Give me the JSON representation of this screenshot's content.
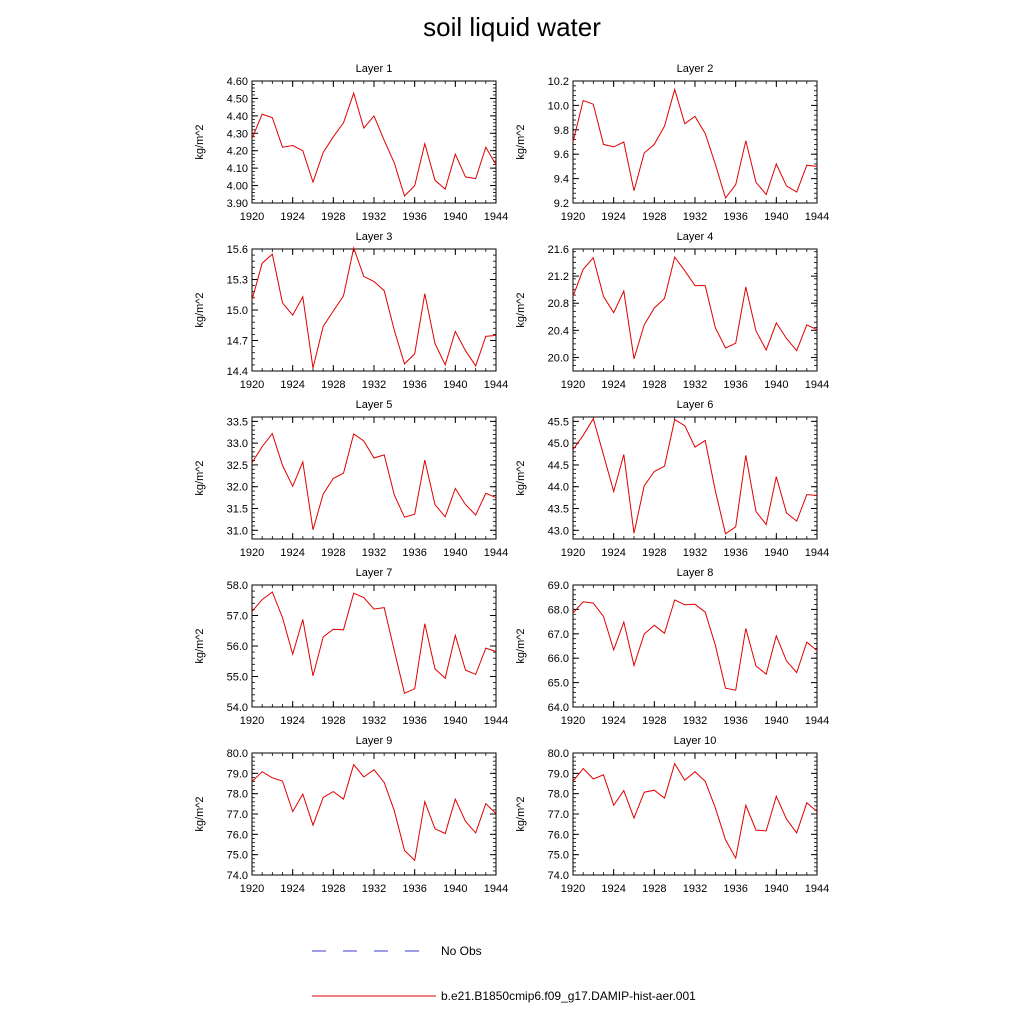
{
  "title": "soil liquid water",
  "legend": {
    "items": [
      {
        "label": "No Obs",
        "color": "#3b3bd6",
        "style": "dashed"
      },
      {
        "label": "b.e21.B1850cmip6.f09_g17.DAMIP-hist-aer.001",
        "color": "#e00000",
        "style": "solid"
      }
    ]
  },
  "colors": {
    "series": "#e00000",
    "obs": "#3b3bd6"
  },
  "chart_data": [
    {
      "type": "line",
      "title": "Layer 1",
      "ylabel": "kg/m^2",
      "xlim": [
        1920,
        1944
      ],
      "ylim": [
        3.9,
        4.6
      ],
      "xticks": [
        "1920",
        "1924",
        "1928",
        "1932",
        "1936",
        "1940",
        "1944"
      ],
      "yticks": [
        "3.90",
        "4.00",
        "4.10",
        "4.20",
        "4.30",
        "4.40",
        "4.50",
        "4.60"
      ],
      "x": [
        1920,
        1921,
        1922,
        1923,
        1924,
        1925,
        1926,
        1927,
        1928,
        1929,
        1930,
        1931,
        1932,
        1933,
        1934,
        1935,
        1936,
        1937,
        1938,
        1939,
        1940,
        1941,
        1942,
        1943,
        1944
      ],
      "series": [
        {
          "name": "b.e21.B1850cmip6.f09_g17.DAMIP-hist-aer.001",
          "values": [
            4.27,
            4.41,
            4.39,
            4.22,
            4.23,
            4.2,
            4.02,
            4.19,
            4.28,
            4.36,
            4.53,
            4.33,
            4.4,
            4.26,
            4.13,
            3.94,
            4.0,
            4.24,
            4.03,
            3.98,
            4.18,
            4.05,
            4.04,
            4.22,
            4.12
          ]
        }
      ]
    },
    {
      "type": "line",
      "title": "Layer 2",
      "ylabel": "kg/m^2",
      "xlim": [
        1920,
        1944
      ],
      "ylim": [
        9.2,
        10.2
      ],
      "xticks": [
        "1920",
        "1924",
        "1928",
        "1932",
        "1936",
        "1940",
        "1944"
      ],
      "yticks": [
        "9.2",
        "9.4",
        "9.6",
        "9.8",
        "10.0",
        "10.2"
      ],
      "x": [
        1920,
        1921,
        1922,
        1923,
        1924,
        1925,
        1926,
        1927,
        1928,
        1929,
        1930,
        1931,
        1932,
        1933,
        1934,
        1935,
        1936,
        1937,
        1938,
        1939,
        1940,
        1941,
        1942,
        1943,
        1944
      ],
      "series": [
        {
          "name": "b.e21.B1850cmip6.f09_g17.DAMIP-hist-aer.001",
          "values": [
            9.7,
            10.04,
            10.01,
            9.68,
            9.66,
            9.7,
            9.3,
            9.61,
            9.68,
            9.83,
            10.13,
            9.85,
            9.91,
            9.77,
            9.52,
            9.24,
            9.35,
            9.71,
            9.37,
            9.27,
            9.52,
            9.34,
            9.29,
            9.51,
            9.5
          ]
        }
      ]
    },
    {
      "type": "line",
      "title": "Layer 3",
      "ylabel": "kg/m^2",
      "xlim": [
        1920,
        1944
      ],
      "ylim": [
        14.4,
        15.6
      ],
      "xticks": [
        "1920",
        "1924",
        "1928",
        "1932",
        "1936",
        "1940",
        "1944"
      ],
      "yticks": [
        "14.4",
        "14.7",
        "15.0",
        "15.3",
        "15.6"
      ],
      "x": [
        1920,
        1921,
        1922,
        1923,
        1924,
        1925,
        1926,
        1927,
        1928,
        1929,
        1930,
        1931,
        1932,
        1933,
        1934,
        1935,
        1936,
        1937,
        1938,
        1939,
        1940,
        1941,
        1942,
        1943,
        1944
      ],
      "series": [
        {
          "name": "b.e21.B1850cmip6.f09_g17.DAMIP-hist-aer.001",
          "values": [
            15.1,
            15.46,
            15.55,
            15.07,
            14.95,
            15.13,
            14.43,
            14.84,
            14.99,
            15.14,
            15.61,
            15.33,
            15.28,
            15.19,
            14.8,
            14.47,
            14.57,
            15.16,
            14.67,
            14.46,
            14.79,
            14.6,
            14.45,
            14.74,
            14.75
          ]
        }
      ]
    },
    {
      "type": "line",
      "title": "Layer 4",
      "ylabel": "kg/m^2",
      "xlim": [
        1920,
        1944
      ],
      "ylim": [
        19.8,
        21.6
      ],
      "xticks": [
        "1920",
        "1924",
        "1928",
        "1932",
        "1936",
        "1940",
        "1944"
      ],
      "yticks": [
        "20.0",
        "20.4",
        "20.8",
        "21.2",
        "21.6"
      ],
      "x": [
        1920,
        1921,
        1922,
        1923,
        1924,
        1925,
        1926,
        1927,
        1928,
        1929,
        1930,
        1931,
        1932,
        1933,
        1934,
        1935,
        1936,
        1937,
        1938,
        1939,
        1940,
        1941,
        1942,
        1943,
        1944
      ],
      "series": [
        {
          "name": "b.e21.B1850cmip6.f09_g17.DAMIP-hist-aer.001",
          "values": [
            20.9,
            21.3,
            21.47,
            20.9,
            20.66,
            20.98,
            19.98,
            20.48,
            20.73,
            20.87,
            21.48,
            21.28,
            21.06,
            21.06,
            20.44,
            20.14,
            20.21,
            21.04,
            20.39,
            20.11,
            20.51,
            20.28,
            20.1,
            20.48,
            20.41
          ]
        }
      ]
    },
    {
      "type": "line",
      "title": "Layer 5",
      "ylabel": "kg/m^2",
      "xlim": [
        1920,
        1944
      ],
      "ylim": [
        30.8,
        33.6
      ],
      "xticks": [
        "1920",
        "1924",
        "1928",
        "1932",
        "1936",
        "1940",
        "1944"
      ],
      "yticks": [
        "31.0",
        "31.5",
        "32.0",
        "32.5",
        "33.0",
        "33.5"
      ],
      "x": [
        1920,
        1921,
        1922,
        1923,
        1924,
        1925,
        1926,
        1927,
        1928,
        1929,
        1930,
        1931,
        1932,
        1933,
        1934,
        1935,
        1936,
        1937,
        1938,
        1939,
        1940,
        1941,
        1942,
        1943,
        1944
      ],
      "series": [
        {
          "name": "b.e21.B1850cmip6.f09_g17.DAMIP-hist-aer.001",
          "values": [
            32.55,
            32.92,
            33.22,
            32.49,
            32.01,
            32.57,
            31.01,
            31.83,
            32.19,
            32.31,
            33.21,
            33.05,
            32.66,
            32.73,
            31.81,
            31.3,
            31.37,
            32.61,
            31.59,
            31.31,
            31.96,
            31.59,
            31.35,
            31.85,
            31.75
          ]
        }
      ]
    },
    {
      "type": "line",
      "title": "Layer 6",
      "ylabel": "kg/m^2",
      "xlim": [
        1920,
        1944
      ],
      "ylim": [
        42.8,
        45.6
      ],
      "xticks": [
        "1920",
        "1924",
        "1928",
        "1932",
        "1936",
        "1940",
        "1944"
      ],
      "yticks": [
        "43.0",
        "43.5",
        "44.0",
        "44.5",
        "45.0",
        "45.5"
      ],
      "x": [
        1920,
        1921,
        1922,
        1923,
        1924,
        1925,
        1926,
        1927,
        1928,
        1929,
        1930,
        1931,
        1932,
        1933,
        1934,
        1935,
        1936,
        1937,
        1938,
        1939,
        1940,
        1941,
        1942,
        1943,
        1944
      ],
      "series": [
        {
          "name": "b.e21.B1850cmip6.f09_g17.DAMIP-hist-aer.001",
          "values": [
            44.85,
            45.18,
            45.56,
            44.73,
            43.89,
            44.74,
            42.93,
            44.02,
            44.35,
            44.47,
            45.54,
            45.4,
            44.91,
            45.06,
            43.91,
            42.92,
            43.08,
            44.72,
            43.43,
            43.13,
            44.23,
            43.4,
            43.21,
            43.82,
            43.8
          ]
        }
      ]
    },
    {
      "type": "line",
      "title": "Layer 7",
      "ylabel": "kg/m^2",
      "xlim": [
        1920,
        1944
      ],
      "ylim": [
        54.0,
        58.0
      ],
      "xticks": [
        "1920",
        "1924",
        "1928",
        "1932",
        "1936",
        "1940",
        "1944"
      ],
      "yticks": [
        "54.0",
        "55.0",
        "56.0",
        "57.0",
        "58.0"
      ],
      "x": [
        1920,
        1921,
        1922,
        1923,
        1924,
        1925,
        1926,
        1927,
        1928,
        1929,
        1930,
        1931,
        1932,
        1933,
        1934,
        1935,
        1936,
        1937,
        1938,
        1939,
        1940,
        1941,
        1942,
        1943,
        1944
      ],
      "series": [
        {
          "name": "b.e21.B1850cmip6.f09_g17.DAMIP-hist-aer.001",
          "values": [
            57.13,
            57.52,
            57.77,
            56.93,
            55.73,
            56.87,
            55.02,
            56.3,
            56.55,
            56.53,
            57.73,
            57.59,
            57.21,
            57.26,
            55.85,
            54.45,
            54.6,
            56.73,
            55.25,
            54.94,
            56.35,
            55.21,
            55.07,
            55.93,
            55.82
          ]
        }
      ]
    },
    {
      "type": "line",
      "title": "Layer 8",
      "ylabel": "kg/m^2",
      "xlim": [
        1920,
        1944
      ],
      "ylim": [
        64.0,
        69.0
      ],
      "xticks": [
        "1920",
        "1924",
        "1928",
        "1932",
        "1936",
        "1940",
        "1944"
      ],
      "yticks": [
        "64.0",
        "65.0",
        "66.0",
        "67.0",
        "68.0",
        "69.0"
      ],
      "x": [
        1920,
        1921,
        1922,
        1923,
        1924,
        1925,
        1926,
        1927,
        1928,
        1929,
        1930,
        1931,
        1932,
        1933,
        1934,
        1935,
        1936,
        1937,
        1938,
        1939,
        1940,
        1941,
        1942,
        1943,
        1944
      ],
      "series": [
        {
          "name": "b.e21.B1850cmip6.f09_g17.DAMIP-hist-aer.001",
          "values": [
            67.85,
            68.31,
            68.26,
            67.71,
            66.34,
            67.48,
            65.7,
            66.99,
            67.35,
            67.02,
            68.39,
            68.19,
            68.21,
            67.89,
            66.54,
            64.77,
            64.69,
            67.22,
            65.68,
            65.35,
            66.92,
            65.89,
            65.41,
            66.66,
            66.31
          ]
        }
      ]
    },
    {
      "type": "line",
      "title": "Layer 9",
      "ylabel": "kg/m^2",
      "xlim": [
        1920,
        1944
      ],
      "ylim": [
        74.0,
        80.0
      ],
      "xticks": [
        "1920",
        "1924",
        "1928",
        "1932",
        "1936",
        "1940",
        "1944"
      ],
      "yticks": [
        "74.0",
        "75.0",
        "76.0",
        "77.0",
        "78.0",
        "79.0",
        "80.0"
      ],
      "x": [
        1920,
        1921,
        1922,
        1923,
        1924,
        1925,
        1926,
        1927,
        1928,
        1929,
        1930,
        1931,
        1932,
        1933,
        1934,
        1935,
        1936,
        1937,
        1938,
        1939,
        1940,
        1941,
        1942,
        1943,
        1944
      ],
      "series": [
        {
          "name": "b.e21.B1850cmip6.f09_g17.DAMIP-hist-aer.001",
          "values": [
            78.6,
            79.08,
            78.78,
            78.62,
            77.12,
            77.98,
            76.45,
            77.81,
            78.1,
            77.73,
            79.43,
            78.82,
            79.18,
            78.55,
            77.16,
            75.21,
            74.72,
            77.61,
            76.27,
            76.04,
            77.73,
            76.64,
            76.07,
            77.51,
            77.02
          ]
        }
      ]
    },
    {
      "type": "line",
      "title": "Layer 10",
      "ylabel": "kg/m^2",
      "xlim": [
        1920,
        1944
      ],
      "ylim": [
        74.0,
        80.0
      ],
      "xticks": [
        "1920",
        "1924",
        "1928",
        "1932",
        "1936",
        "1940",
        "1944"
      ],
      "yticks": [
        "74.0",
        "75.0",
        "76.0",
        "77.0",
        "78.0",
        "79.0",
        "80.0"
      ],
      "x": [
        1920,
        1921,
        1922,
        1923,
        1924,
        1925,
        1926,
        1927,
        1928,
        1929,
        1930,
        1931,
        1932,
        1933,
        1934,
        1935,
        1936,
        1937,
        1938,
        1939,
        1940,
        1941,
        1942,
        1943,
        1944
      ],
      "series": [
        {
          "name": "b.e21.B1850cmip6.f09_g17.DAMIP-hist-aer.001",
          "values": [
            78.61,
            79.24,
            78.72,
            78.93,
            77.43,
            78.15,
            76.8,
            78.07,
            78.17,
            77.78,
            79.48,
            78.66,
            79.08,
            78.61,
            77.31,
            75.73,
            74.83,
            77.43,
            76.21,
            76.17,
            77.87,
            76.75,
            76.07,
            77.55,
            77.12
          ]
        }
      ]
    }
  ]
}
